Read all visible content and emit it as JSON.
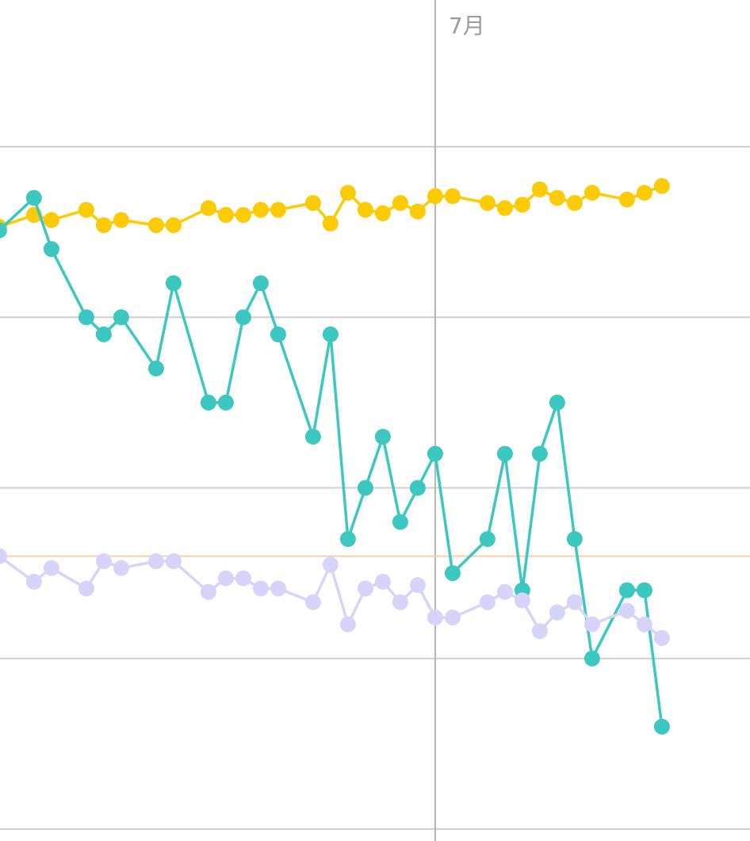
{
  "chart_data": {
    "type": "line",
    "x": [
      -2,
      0,
      1,
      3,
      4,
      5,
      7,
      8,
      10,
      11,
      12,
      13,
      14,
      16,
      17,
      18,
      19,
      20,
      21,
      22,
      23,
      24,
      26,
      27,
      28,
      29,
      30,
      31,
      32,
      34,
      35,
      36
    ],
    "xlim": [
      -1.95,
      41.05
    ],
    "xticks": [
      {
        "value": 23,
        "label": "7月"
      }
    ],
    "ylim": [
      -0.07,
      4.86
    ],
    "yticks": [
      0,
      1,
      2,
      3,
      4
    ],
    "grid": true,
    "reference_line": {
      "value": 1.6,
      "color": "#f9cfa8"
    },
    "series": [
      {
        "color": "#fccb06",
        "values": [
          3.53,
          3.6,
          3.57,
          3.63,
          3.54,
          3.57,
          3.54,
          3.54,
          3.64,
          3.6,
          3.6,
          3.63,
          3.63,
          3.67,
          3.55,
          3.73,
          3.63,
          3.61,
          3.67,
          3.62,
          3.71,
          3.71,
          3.67,
          3.64,
          3.66,
          3.75,
          3.7,
          3.67,
          3.73,
          3.69,
          3.73,
          3.77
        ]
      },
      {
        "color": "#3cc8c0",
        "values": [
          3.51,
          3.7,
          3.4,
          3.0,
          2.9,
          3.0,
          2.7,
          3.2,
          2.5,
          2.5,
          3.0,
          3.2,
          2.9,
          2.3,
          2.9,
          1.7,
          2.0,
          2.3,
          1.8,
          2.0,
          2.2,
          1.5,
          1.7,
          2.2,
          1.4,
          2.2,
          2.5,
          1.7,
          1.0,
          1.4,
          1.4,
          0.6
        ]
      },
      {
        "color": "#d6d4fa",
        "values": [
          1.6,
          1.45,
          1.53,
          1.41,
          1.57,
          1.53,
          1.57,
          1.57,
          1.39,
          1.47,
          1.47,
          1.41,
          1.41,
          1.33,
          1.55,
          1.2,
          1.41,
          1.45,
          1.33,
          1.43,
          1.24,
          1.24,
          1.33,
          1.39,
          1.34,
          1.16,
          1.27,
          1.33,
          1.2,
          1.28,
          1.2,
          1.12
        ]
      }
    ]
  }
}
